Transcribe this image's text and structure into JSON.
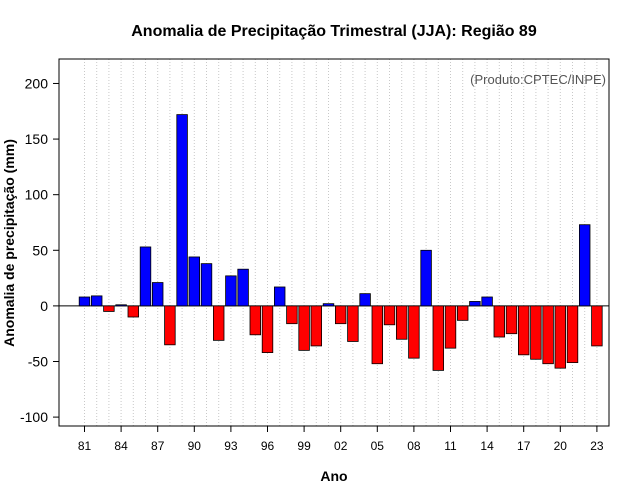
{
  "chart_data": {
    "type": "bar",
    "title": "Anomalia de Precipitação Trimestral (JJA): Região 89",
    "xlabel": "Ano",
    "ylabel": "Anomalia de precipitação (mm)",
    "credit": "(Produto:CPTEC/INPE)",
    "ylim": [
      -108,
      222
    ],
    "yticks": [
      -100,
      -50,
      0,
      50,
      100,
      150,
      200
    ],
    "x_tick_labels": [
      {
        "year": 1981,
        "label": "81"
      },
      {
        "year": 1984,
        "label": "84"
      },
      {
        "year": 1987,
        "label": "87"
      },
      {
        "year": 1990,
        "label": "90"
      },
      {
        "year": 1993,
        "label": "93"
      },
      {
        "year": 1996,
        "label": "96"
      },
      {
        "year": 1999,
        "label": "99"
      },
      {
        "year": 2002,
        "label": "02"
      },
      {
        "year": 2005,
        "label": "05"
      },
      {
        "year": 2008,
        "label": "08"
      },
      {
        "year": 2011,
        "label": "11"
      },
      {
        "year": 2014,
        "label": "14"
      },
      {
        "year": 2017,
        "label": "17"
      },
      {
        "year": 2020,
        "label": "20"
      },
      {
        "year": 2023,
        "label": "23"
      }
    ],
    "years": [
      1981,
      1982,
      1983,
      1984,
      1985,
      1986,
      1987,
      1988,
      1989,
      1990,
      1991,
      1992,
      1993,
      1994,
      1995,
      1996,
      1997,
      1998,
      1999,
      2000,
      2001,
      2002,
      2003,
      2004,
      2005,
      2006,
      2007,
      2008,
      2009,
      2010,
      2011,
      2012,
      2013,
      2014,
      2015,
      2016,
      2017,
      2018,
      2019,
      2020,
      2021,
      2022,
      2023
    ],
    "values": [
      8,
      9,
      -5,
      1,
      -10,
      53,
      21,
      -35,
      172,
      44,
      38,
      -31,
      27,
      33,
      -26,
      -42,
      17,
      -16,
      -40,
      -36,
      2,
      -16,
      -32,
      11,
      -52,
      -17,
      -30,
      -47,
      50,
      -58,
      -38,
      -13,
      4,
      8,
      -28,
      -25,
      -44,
      -48,
      -52,
      -56,
      -51,
      73,
      -36
    ],
    "colors": {
      "positive": "#0000ff",
      "negative": "#ff0000",
      "bar_stroke": "#000000",
      "grid": "#c8c8c8"
    }
  }
}
